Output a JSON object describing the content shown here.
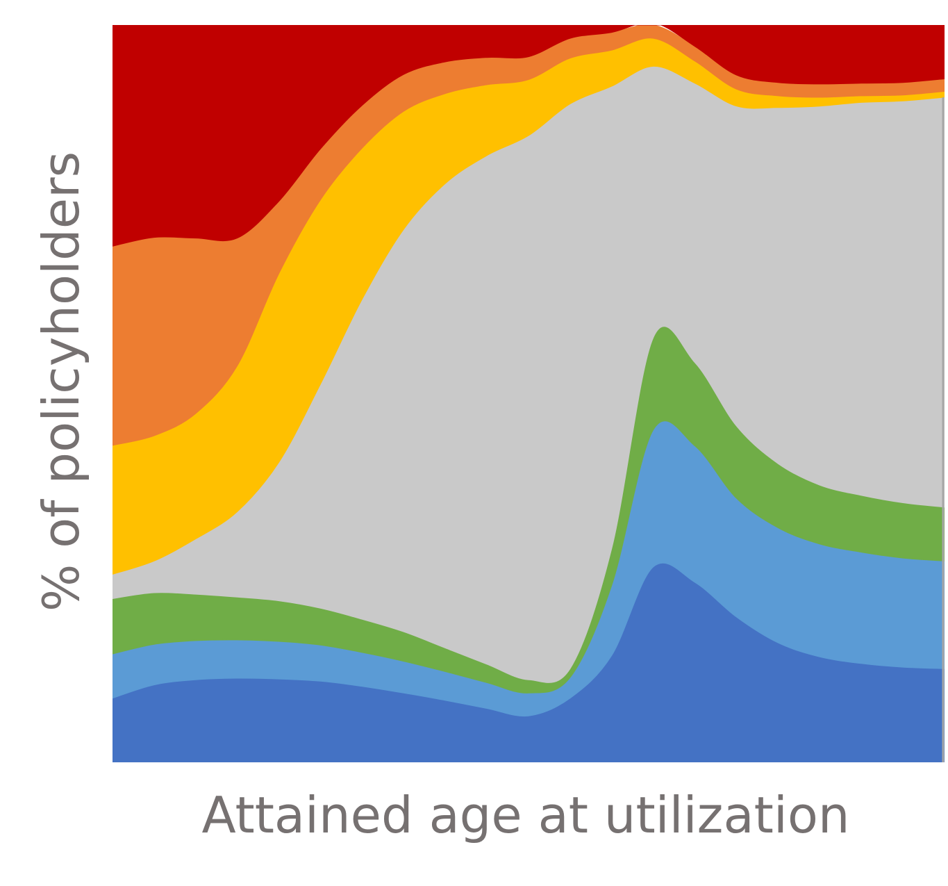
{
  "chart_data": {
    "type": "area",
    "stacked": true,
    "normalized": true,
    "title": "",
    "xlabel": "Attained age at utilization",
    "ylabel": "% of policyholders",
    "x": [
      0,
      1,
      2,
      3,
      4,
      5,
      6,
      7,
      8,
      9,
      10,
      11,
      12,
      13,
      14,
      15,
      16,
      17,
      18,
      19,
      20
    ],
    "ylim": [
      0,
      1
    ],
    "grid": false,
    "legend": "none",
    "series": [
      {
        "color": "#4472C4",
        "values": [
          0.087,
          0.105,
          0.112,
          0.114,
          0.113,
          0.11,
          0.103,
          0.094,
          0.084,
          0.073,
          0.063,
          0.087,
          0.145,
          0.265,
          0.244,
          0.197,
          0.162,
          0.143,
          0.134,
          0.129,
          0.127
        ]
      },
      {
        "color": "#5B9BD5",
        "values": [
          0.06,
          0.055,
          0.053,
          0.052,
          0.051,
          0.049,
          0.046,
          0.043,
          0.039,
          0.035,
          0.031,
          0.028,
          0.095,
          0.186,
          0.185,
          0.161,
          0.156,
          0.153,
          0.151,
          0.148,
          0.146
        ]
      },
      {
        "color": "#70AD47",
        "values": [
          0.075,
          0.07,
          0.063,
          0.058,
          0.055,
          0.05,
          0.045,
          0.04,
          0.032,
          0.025,
          0.018,
          0.012,
          0.05,
          0.125,
          0.113,
          0.098,
          0.087,
          0.08,
          0.077,
          0.075,
          0.073
        ]
      },
      {
        "color": "#C9C9C9",
        "values": [
          0.033,
          0.043,
          0.075,
          0.116,
          0.188,
          0.304,
          0.434,
          0.546,
          0.63,
          0.69,
          0.738,
          0.766,
          0.627,
          0.368,
          0.379,
          0.434,
          0.483,
          0.514,
          0.533,
          0.545,
          0.556
        ]
      },
      {
        "color": "#FFC000",
        "values": [
          0.175,
          0.17,
          0.17,
          0.198,
          0.256,
          0.25,
          0.205,
          0.16,
          0.122,
          0.096,
          0.076,
          0.062,
          0.049,
          0.038,
          0.03,
          0.023,
          0.016,
          0.012,
          0.009,
          0.008,
          0.008
        ]
      },
      {
        "color": "#ED7D31",
        "values": [
          0.27,
          0.269,
          0.238,
          0.173,
          0.098,
          0.069,
          0.058,
          0.05,
          0.043,
          0.037,
          0.031,
          0.027,
          0.024,
          0.021,
          0.02,
          0.019,
          0.018,
          0.018,
          0.017,
          0.017,
          0.017
        ]
      },
      {
        "color": "#C00000",
        "values": [
          0.3,
          0.288,
          0.289,
          0.289,
          0.239,
          0.168,
          0.109,
          0.067,
          0.05,
          0.044,
          0.043,
          0.018,
          0.01,
          -0.003,
          0.029,
          0.068,
          0.078,
          0.08,
          0.079,
          0.078,
          0.073
        ]
      }
    ]
  }
}
